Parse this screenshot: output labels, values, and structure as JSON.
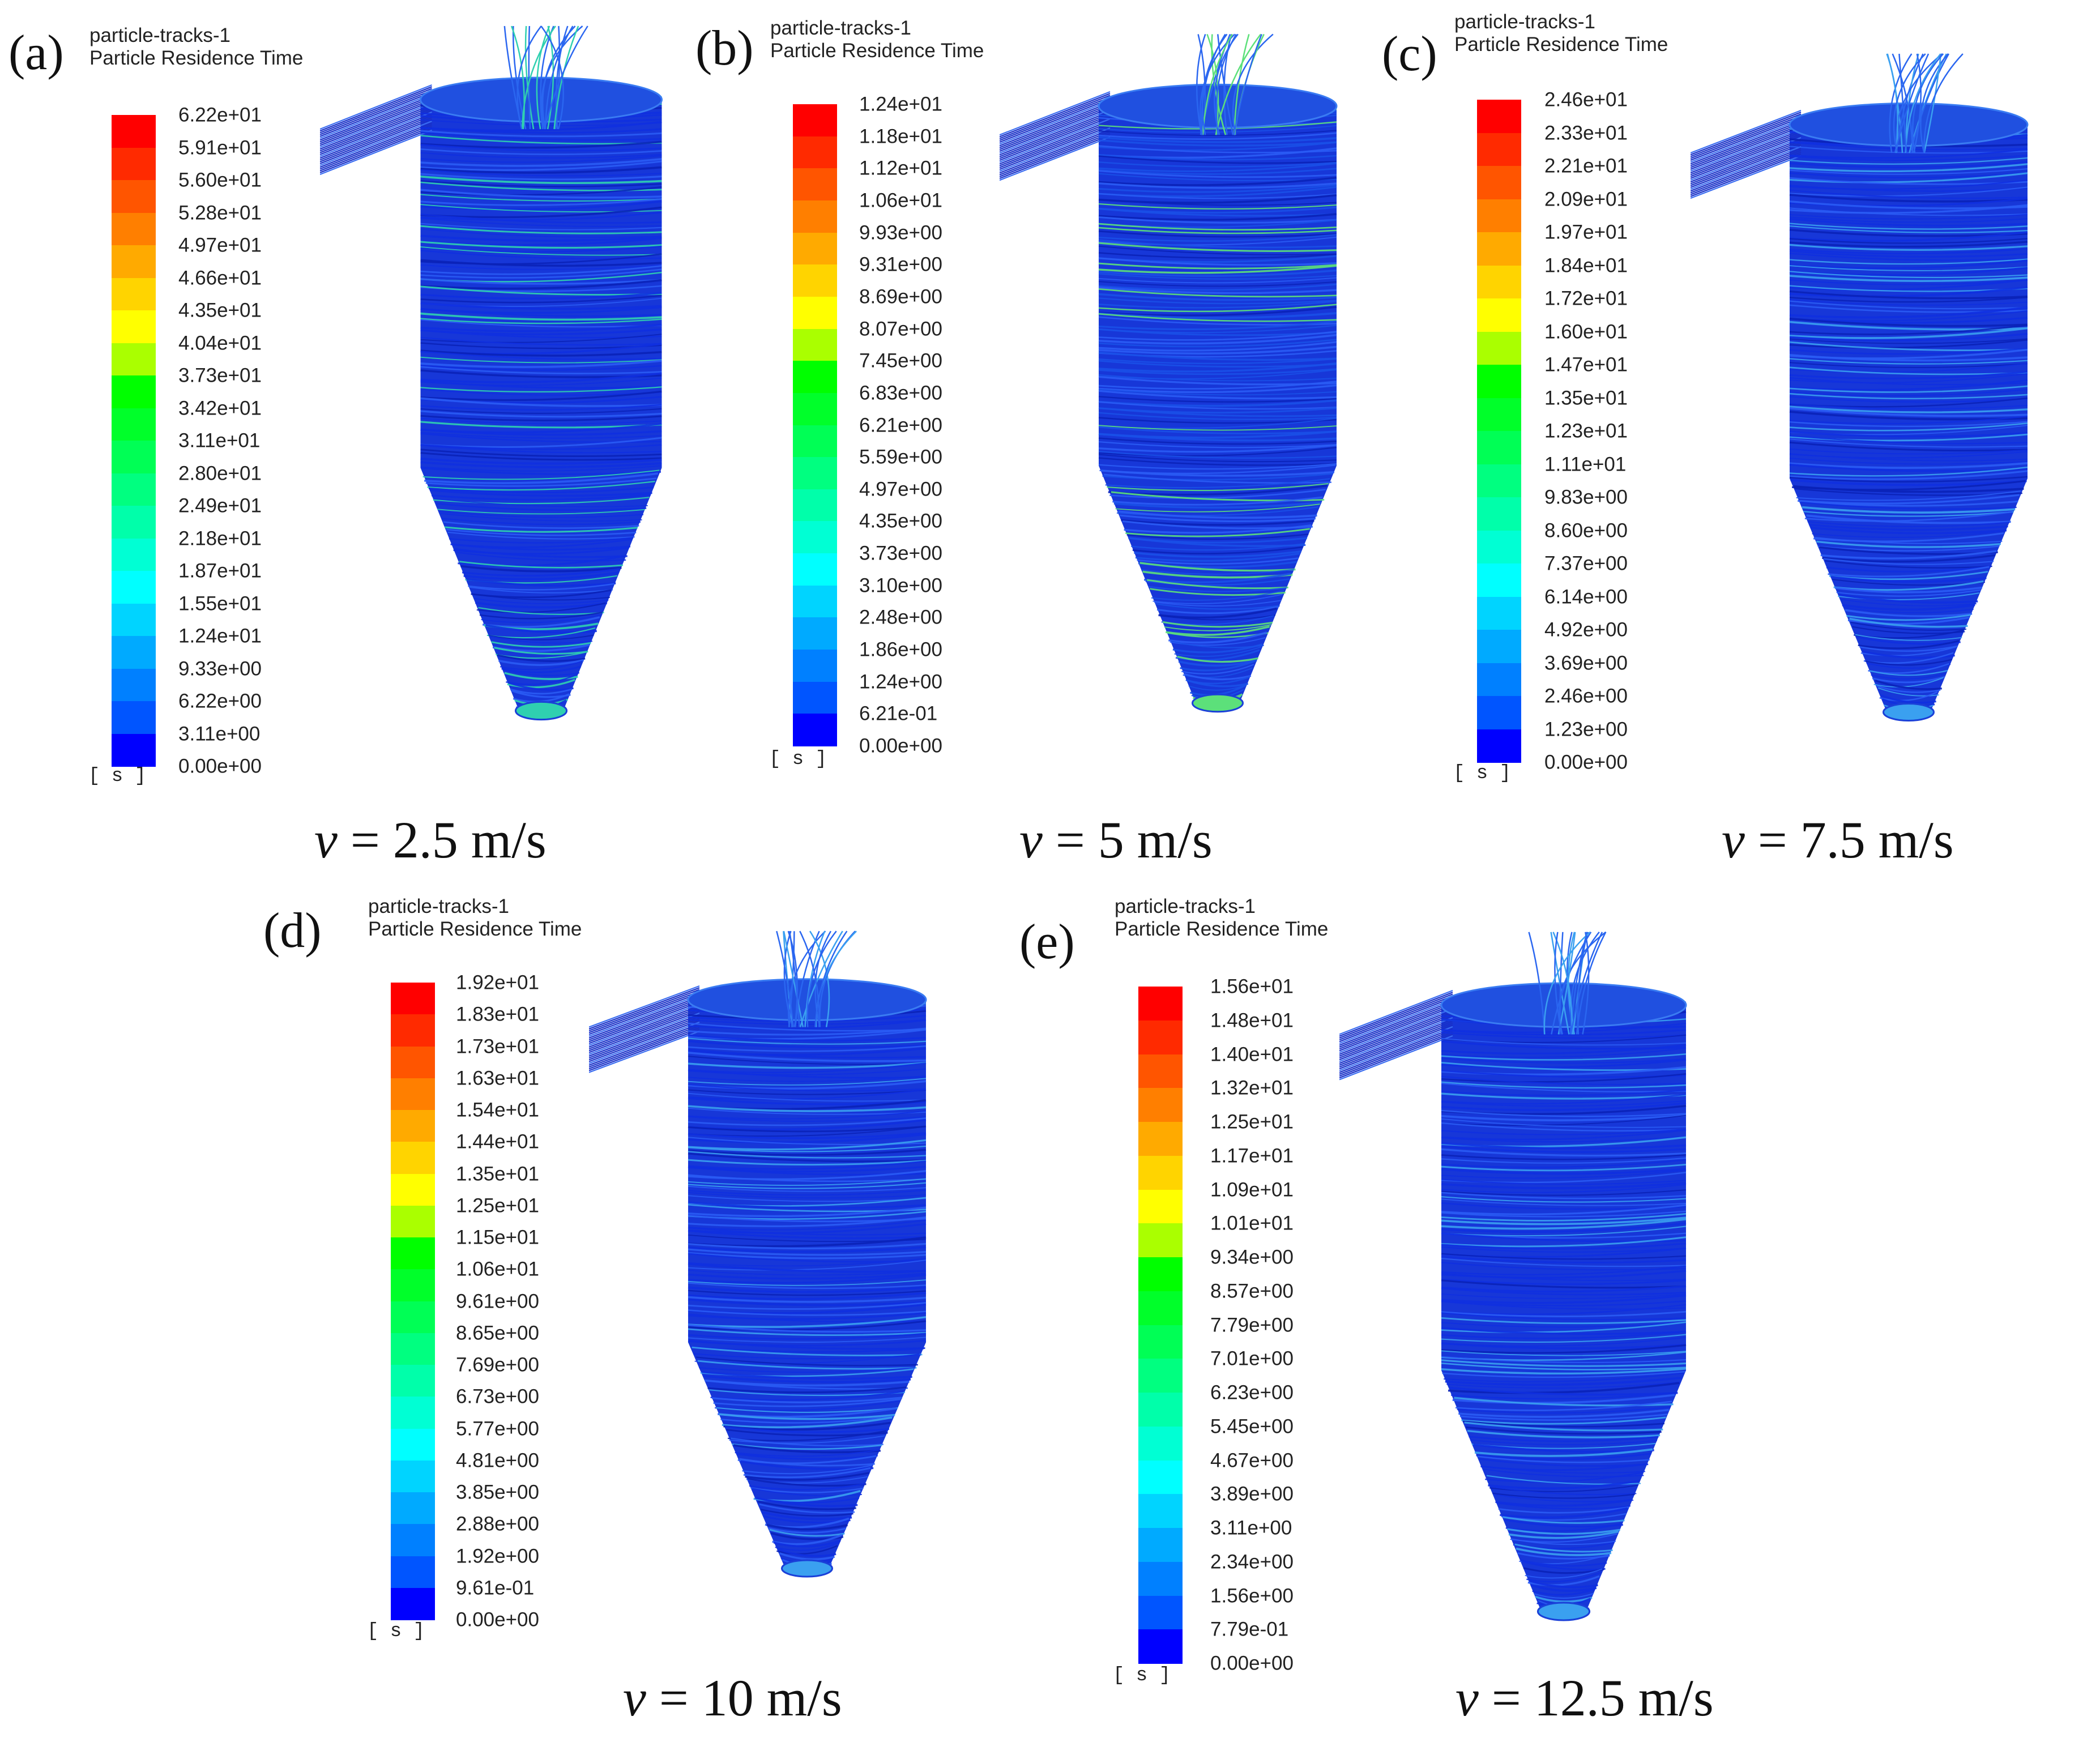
{
  "figure": {
    "panels": [
      {
        "id": "a",
        "letter": "(a)",
        "header_line1": "particle-tracks-1",
        "header_line2": "Particle Residence Time",
        "unit": "[ s ]",
        "ticks": [
          "6.22e+01",
          "5.91e+01",
          "5.60e+01",
          "5.28e+01",
          "4.97e+01",
          "4.66e+01",
          "4.35e+01",
          "4.04e+01",
          "3.73e+01",
          "3.42e+01",
          "3.11e+01",
          "2.80e+01",
          "2.49e+01",
          "2.18e+01",
          "1.87e+01",
          "1.55e+01",
          "1.24e+01",
          "9.33e+00",
          "6.22e+00",
          "3.11e+00",
          "0.00e+00"
        ],
        "velocity_symbol": "ν",
        "velocity_value": "= 2.5 m/s",
        "dominant_track_color": "#1030e0",
        "accent_track_color": "#2fd0b0"
      },
      {
        "id": "b",
        "letter": "(b)",
        "header_line1": "particle-tracks-1",
        "header_line2": "Particle Residence Time",
        "unit": "[ s ]",
        "ticks": [
          "1.24e+01",
          "1.18e+01",
          "1.12e+01",
          "1.06e+01",
          "9.93e+00",
          "9.31e+00",
          "8.69e+00",
          "8.07e+00",
          "7.45e+00",
          "6.83e+00",
          "6.21e+00",
          "5.59e+00",
          "4.97e+00",
          "4.35e+00",
          "3.73e+00",
          "3.10e+00",
          "2.48e+00",
          "1.86e+00",
          "1.24e+00",
          "6.21e-01",
          "0.00e+00"
        ],
        "velocity_symbol": "ν",
        "velocity_value": "= 5 m/s",
        "dominant_track_color": "#1a50e8",
        "accent_track_color": "#5ce07a"
      },
      {
        "id": "c",
        "letter": "(c)",
        "header_line1": "particle-tracks-1",
        "header_line2": "Particle Residence Time",
        "unit": "[ s ]",
        "ticks": [
          "2.46e+01",
          "2.33e+01",
          "2.21e+01",
          "2.09e+01",
          "1.97e+01",
          "1.84e+01",
          "1.72e+01",
          "1.60e+01",
          "1.47e+01",
          "1.35e+01",
          "1.23e+01",
          "1.11e+01",
          "9.83e+00",
          "8.60e+00",
          "7.37e+00",
          "6.14e+00",
          "4.92e+00",
          "3.69e+00",
          "2.46e+00",
          "1.23e+00",
          "0.00e+00"
        ],
        "velocity_symbol": "ν",
        "velocity_value": "= 7.5 m/s",
        "dominant_track_color": "#1030e0",
        "accent_track_color": "#3aa0f0"
      },
      {
        "id": "d",
        "letter": "(d)",
        "header_line1": "particle-tracks-1",
        "header_line2": "Particle Residence Time",
        "unit": "[ s ]",
        "ticks": [
          "1.92e+01",
          "1.83e+01",
          "1.73e+01",
          "1.63e+01",
          "1.54e+01",
          "1.44e+01",
          "1.35e+01",
          "1.25e+01",
          "1.15e+01",
          "1.06e+01",
          "9.61e+00",
          "8.65e+00",
          "7.69e+00",
          "6.73e+00",
          "5.77e+00",
          "4.81e+00",
          "3.85e+00",
          "2.88e+00",
          "1.92e+00",
          "9.61e-01",
          "0.00e+00"
        ],
        "velocity_symbol": "ν",
        "velocity_value": "= 10 m/s",
        "dominant_track_color": "#1030e0",
        "accent_track_color": "#3aa0f0"
      },
      {
        "id": "e",
        "letter": "(e)",
        "header_line1": "particle-tracks-1",
        "header_line2": "Particle Residence Time",
        "unit": "[ s ]",
        "ticks": [
          "1.56e+01",
          "1.48e+01",
          "1.40e+01",
          "1.32e+01",
          "1.25e+01",
          "1.17e+01",
          "1.09e+01",
          "1.01e+01",
          "9.34e+00",
          "8.57e+00",
          "7.79e+00",
          "7.01e+00",
          "6.23e+00",
          "5.45e+00",
          "4.67e+00",
          "3.89e+00",
          "3.11e+00",
          "2.34e+00",
          "1.56e+00",
          "7.79e-01",
          "0.00e+00"
        ],
        "velocity_symbol": "ν",
        "velocity_value": "= 12.5 m/s",
        "dominant_track_color": "#1030e0",
        "accent_track_color": "#3aa0f0"
      }
    ],
    "colormap": [
      "#ff0000",
      "#ff2a00",
      "#ff5500",
      "#ff7f00",
      "#ffaa00",
      "#ffd400",
      "#ffff00",
      "#aaff00",
      "#00ff00",
      "#00ff2a",
      "#00ff55",
      "#00ff80",
      "#00ffaa",
      "#00ffd4",
      "#00ffff",
      "#00d4ff",
      "#00aaff",
      "#0080ff",
      "#0055ff",
      "#0000ff"
    ]
  }
}
